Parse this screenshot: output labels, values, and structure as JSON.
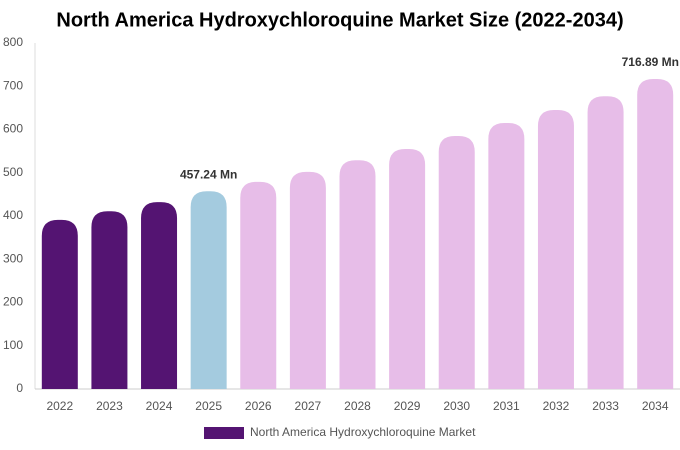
{
  "chart_data": {
    "type": "bar",
    "title": "North America Hydroxychloroquine Market Size (2022-2034)",
    "categories": [
      "2022",
      "2023",
      "2024",
      "2025",
      "2026",
      "2027",
      "2028",
      "2029",
      "2030",
      "2031",
      "2032",
      "2033",
      "2034"
    ],
    "series": [
      {
        "name": "North America Hydroxychloroquine Market",
        "color": "#541472",
        "colors": [
          "#541472",
          "#541472",
          "#541472",
          "#a4cbdf",
          "#e7bde8",
          "#e7bde8",
          "#e7bde8",
          "#e7bde8",
          "#e7bde8",
          "#e7bde8",
          "#e7bde8",
          "#e7bde8",
          "#e7bde8"
        ],
        "values": [
          391,
          411,
          432,
          457.24,
          479,
          502,
          529,
          555,
          585,
          615,
          645,
          677,
          716.89
        ],
        "value_labels": [
          null,
          null,
          null,
          "457.24 Mn",
          null,
          null,
          null,
          null,
          null,
          null,
          null,
          null,
          "716.89 Mn"
        ]
      }
    ],
    "ylim": [
      0,
      800
    ],
    "yticks": [
      0,
      100,
      200,
      300,
      400,
      500,
      600,
      700,
      800
    ],
    "grid": false
  }
}
